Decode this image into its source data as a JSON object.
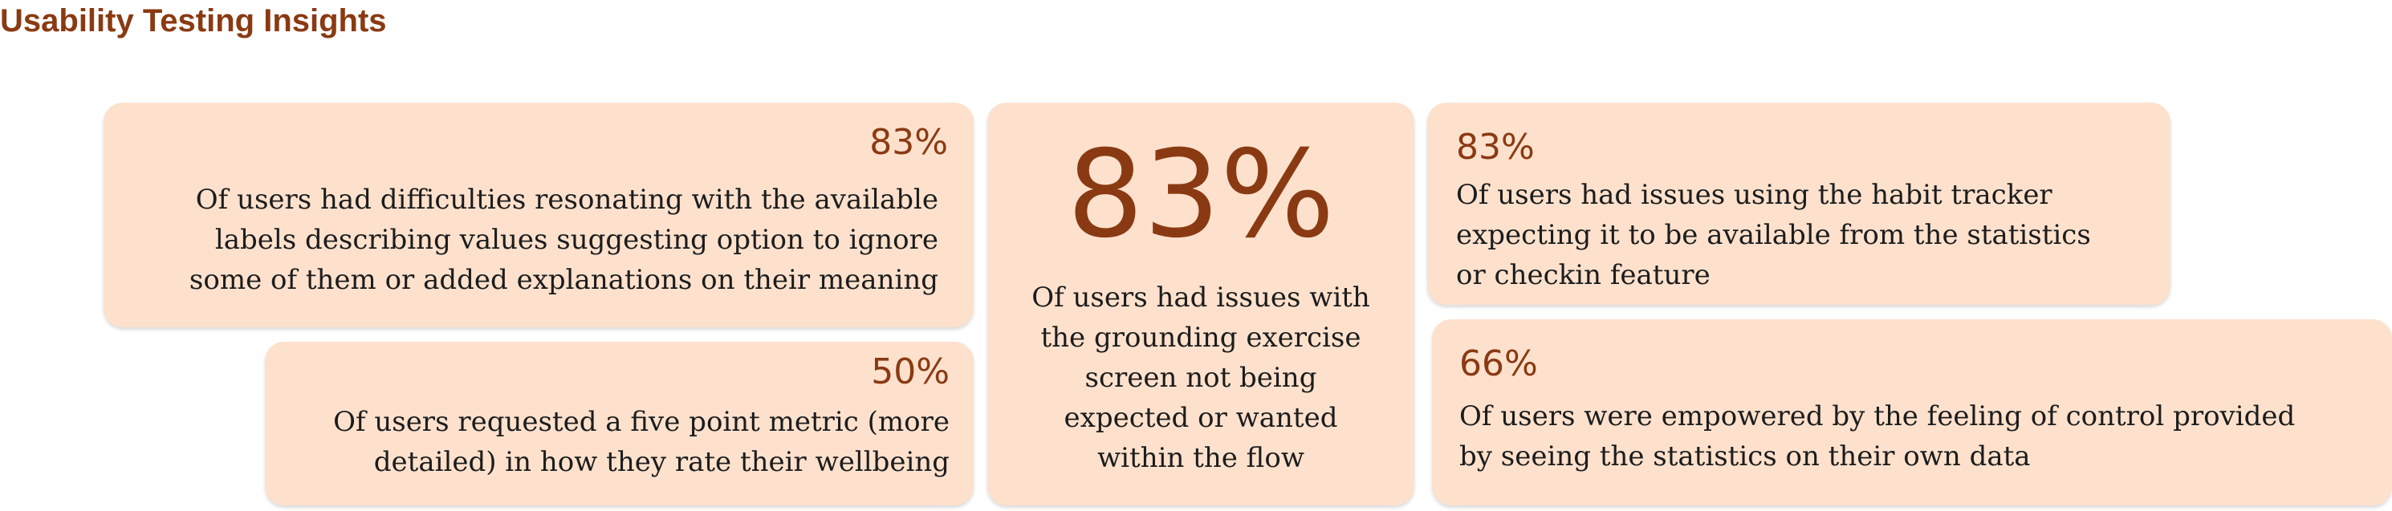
{
  "header": {
    "title": "Usability Testing Insights"
  },
  "cards": [
    {
      "percent": "83%",
      "text": "Of users had difficulties resonating with the available\nlabels describing values suggesting option to ignore\nsome of them or added explanations on their meaning"
    },
    {
      "percent": "50%",
      "text": "Of users requested a five point metric (more\ndetailed) in how they rate their wellbeing"
    },
    {
      "percent": "83%",
      "text": "Of users had issues with\nthe grounding exercise\nscreen not being\nexpected or wanted\nwithin the flow"
    },
    {
      "percent": "83%",
      "text": "Of users had issues using the habit tracker\nexpecting it to be available from the statistics\nor checkin feature"
    },
    {
      "percent": "66%",
      "text": "Of users were empowered by the feeling of control provided\nby seeing the statistics on their own data"
    }
  ],
  "colors": {
    "accent": "#8a3a12",
    "card_background": "#fde1cd",
    "body_text": "#1c1c1c"
  }
}
